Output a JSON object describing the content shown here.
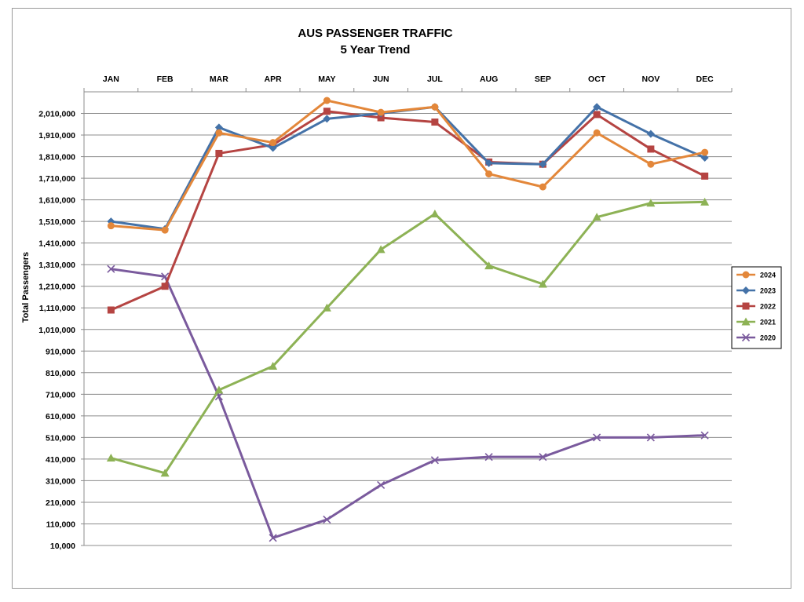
{
  "chart_data": {
    "type": "line",
    "title": "AUS PASSENGER TRAFFIC",
    "subtitle": "5 Year Trend",
    "xlabel": "",
    "ylabel": "Total Passengers",
    "categories": [
      "JAN",
      "FEB",
      "MAR",
      "APR",
      "MAY",
      "JUN",
      "JUL",
      "AUG",
      "SEP",
      "OCT",
      "NOV",
      "DEC"
    ],
    "ylim": [
      10000,
      2110000
    ],
    "yticks": [
      10000,
      110000,
      210000,
      310000,
      410000,
      510000,
      610000,
      710000,
      810000,
      910000,
      1010000,
      1110000,
      1210000,
      1310000,
      1410000,
      1510000,
      1610000,
      1710000,
      1810000,
      1910000,
      2010000
    ],
    "ytick_labels": [
      "10,000",
      "110,000",
      "210,000",
      "310,000",
      "410,000",
      "510,000",
      "610,000",
      "710,000",
      "810,000",
      "910,000",
      "1,010,000",
      "1,110,000",
      "1,210,000",
      "1,310,000",
      "1,410,000",
      "1,510,000",
      "1,610,000",
      "1,710,000",
      "1,810,000",
      "1,910,000",
      "2,010,000"
    ],
    "grid": true,
    "x_axis_position": "top",
    "legend_position": "right",
    "series": [
      {
        "name": "2024",
        "color": "#E3873A",
        "marker": "circle",
        "values": [
          1490000,
          1470000,
          1920000,
          1875000,
          2070000,
          2015000,
          2040000,
          1730000,
          1670000,
          1920000,
          1775000,
          1830000
        ]
      },
      {
        "name": "2023",
        "color": "#4472A8",
        "marker": "diamond",
        "values": [
          1510000,
          1475000,
          1945000,
          1850000,
          1985000,
          2010000,
          2040000,
          1780000,
          1775000,
          2040000,
          1915000,
          1805000
        ]
      },
      {
        "name": "2022",
        "color": "#B54442",
        "marker": "square",
        "values": [
          1100000,
          1210000,
          1825000,
          1865000,
          2020000,
          1990000,
          1970000,
          1785000,
          1775000,
          2005000,
          1845000,
          1720000
        ]
      },
      {
        "name": "2021",
        "color": "#8DB255",
        "marker": "triangle",
        "values": [
          415000,
          345000,
          730000,
          840000,
          1110000,
          1380000,
          1545000,
          1305000,
          1220000,
          1530000,
          1595000,
          1600000
        ]
      },
      {
        "name": "2020",
        "color": "#7A5A9D",
        "marker": "x",
        "values": [
          1290000,
          1255000,
          700000,
          45000,
          130000,
          290000,
          405000,
          420000,
          420000,
          510000,
          510000,
          520000
        ]
      }
    ]
  }
}
